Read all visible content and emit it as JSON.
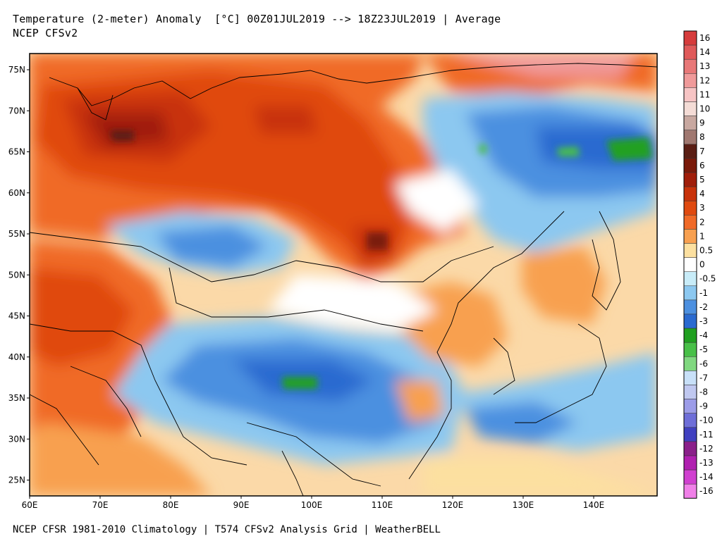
{
  "header": {
    "title_line1": "Temperature (2-meter) Anomaly  [°C] 00Z01JUL2019 --> 18Z23JUL2019 | Average",
    "title_line2": "NCEP CFSv2"
  },
  "footer": {
    "text": "NCEP CFSR 1981-2010 Climatology | T574 CFSv2 Analysis Grid | WeatherBELL"
  },
  "axes": {
    "lon_labels": [
      "60E",
      "70E",
      "80E",
      "90E",
      "100E",
      "110E",
      "120E",
      "130E",
      "140E"
    ],
    "lat_labels": [
      "75N",
      "70N",
      "65N",
      "60N",
      "55N",
      "50N",
      "45N",
      "40N",
      "35N",
      "30N",
      "25N"
    ]
  },
  "colorbar": {
    "labels": [
      "16",
      "14",
      "13",
      "12",
      "11",
      "10",
      "9",
      "8",
      "7",
      "6",
      "5",
      "4",
      "3",
      "2",
      "1",
      "0.5",
      "0",
      "-0.5",
      "-1",
      "-2",
      "-3",
      "-4",
      "-5",
      "-6",
      "-7",
      "-8",
      "-9",
      "-10",
      "-11",
      "-12",
      "-13",
      "-14",
      "-16"
    ],
    "colors": [
      "#d63c3c",
      "#e05a5a",
      "#e87878",
      "#f09a9a",
      "#f7c4c4",
      "#f4dcd6",
      "#c8a8a0",
      "#a07870",
      "#5a1e14",
      "#7a1a0a",
      "#a01e0a",
      "#c8320a",
      "#e04a10",
      "#f06a28",
      "#f8a050",
      "#fce0a0",
      "#ffffff",
      "#c8ecf8",
      "#8cc8f0",
      "#4c90e0",
      "#2a6ad0",
      "#20a020",
      "#48c048",
      "#80d880",
      "#c8e0f8",
      "#c0c8f0",
      "#9c9ce8",
      "#6e6ed8",
      "#4040c0",
      "#8a208a",
      "#b020b0",
      "#d040d0",
      "#f080e8"
    ]
  }
}
